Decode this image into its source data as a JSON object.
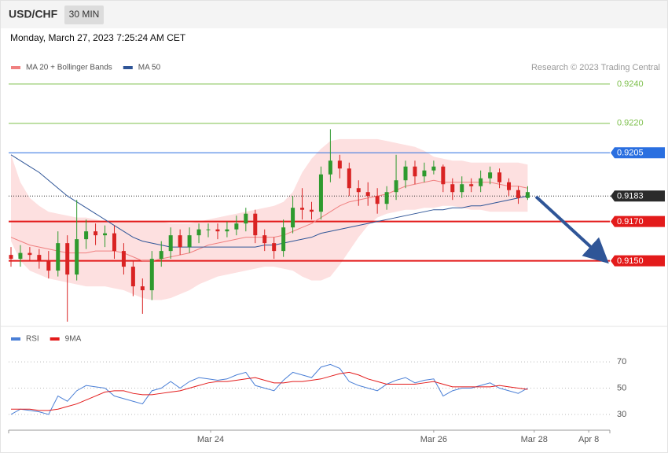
{
  "header": {
    "symbol": "USD/CHF",
    "timeframe": "30 MIN",
    "timestamp": "Monday, March 27, 2023 7:25:24 AM CET",
    "credit": "Research © 2023 Trading Central"
  },
  "chart_data": [
    {
      "type": "candlestick",
      "up_color": "#2e9a2e",
      "down_color": "#d92323",
      "xlim": [
        -0.25,
        63.75
      ],
      "ylim": [
        0.9117,
        0.9268
      ],
      "open": [
        0.9153,
        0.9151,
        0.9154,
        0.9153,
        0.915,
        0.9145,
        0.9159,
        0.9143,
        0.9161,
        0.9165,
        0.9163,
        0.9164,
        0.9155,
        0.9147,
        0.9137,
        0.9135,
        0.9151,
        0.9155,
        0.9163,
        0.9157,
        0.9163,
        0.9166,
        0.9166,
        0.9165,
        0.9166,
        0.9169,
        0.9174,
        0.9163,
        0.9159,
        0.9155,
        0.9167,
        0.9177,
        0.9176,
        0.9175,
        0.9194,
        0.9201,
        0.9197,
        0.9187,
        0.9185,
        0.9183,
        0.9179,
        0.9185,
        0.9191,
        0.9198,
        0.9193,
        0.9196,
        0.9198,
        0.9189,
        0.9185,
        0.9189,
        0.9188,
        0.9192,
        0.9195,
        0.919,
        0.9186,
        0.9182
      ],
      "high": [
        0.9157,
        0.9158,
        0.9157,
        0.9156,
        0.9155,
        0.9165,
        0.9163,
        0.9181,
        0.9171,
        0.9169,
        0.9168,
        0.9168,
        0.9159,
        0.915,
        0.9141,
        0.9155,
        0.916,
        0.9167,
        0.9166,
        0.9167,
        0.9169,
        0.9169,
        0.9169,
        0.917,
        0.9173,
        0.9177,
        0.9176,
        0.9166,
        0.9162,
        0.9171,
        0.9183,
        0.9187,
        0.918,
        0.9198,
        0.9217,
        0.9204,
        0.92,
        0.9191,
        0.919,
        0.9187,
        0.9188,
        0.9204,
        0.9201,
        0.9201,
        0.92,
        0.9201,
        0.9199,
        0.9192,
        0.9193,
        0.9192,
        0.9196,
        0.9198,
        0.9197,
        0.9192,
        0.9188,
        0.9188
      ],
      "low": [
        0.9147,
        0.9147,
        0.915,
        0.9146,
        0.9141,
        0.9142,
        0.9119,
        0.914,
        0.9156,
        0.9158,
        0.9157,
        0.9151,
        0.9143,
        0.9132,
        0.9123,
        0.913,
        0.9147,
        0.9151,
        0.9153,
        0.9154,
        0.9159,
        0.9162,
        0.9161,
        0.9162,
        0.9163,
        0.9165,
        0.9159,
        0.9155,
        0.9151,
        0.9152,
        0.9164,
        0.9171,
        0.9171,
        0.9171,
        0.919,
        0.9192,
        0.9183,
        0.9178,
        0.9178,
        0.9174,
        0.9176,
        0.9181,
        0.9187,
        0.9189,
        0.919,
        0.9194,
        0.9185,
        0.9181,
        0.9182,
        0.9185,
        0.9185,
        0.9189,
        0.9187,
        0.9183,
        0.9179,
        0.9181
      ],
      "close": [
        0.9151,
        0.9154,
        0.9153,
        0.915,
        0.9145,
        0.9159,
        0.9143,
        0.9161,
        0.9165,
        0.9163,
        0.9164,
        0.9155,
        0.9147,
        0.9137,
        0.9135,
        0.9151,
        0.9155,
        0.9163,
        0.9157,
        0.9163,
        0.9166,
        0.9166,
        0.9165,
        0.9166,
        0.9169,
        0.9174,
        0.9163,
        0.9159,
        0.9155,
        0.9167,
        0.9177,
        0.9176,
        0.9175,
        0.9194,
        0.9201,
        0.9197,
        0.9187,
        0.9185,
        0.9183,
        0.9179,
        0.9185,
        0.9191,
        0.9198,
        0.9193,
        0.9196,
        0.9198,
        0.9189,
        0.9185,
        0.9189,
        0.9188,
        0.9192,
        0.9195,
        0.919,
        0.9186,
        0.9182,
        0.9185
      ],
      "series": [
        {
          "name": "MA 20 + Bollinger Bands",
          "color": "#f08080",
          "band_color": "#fde0e0",
          "values": [
            0.9162,
            0.916,
            0.9158,
            0.9157,
            0.9156,
            0.9155,
            0.9154,
            0.9154,
            0.9154,
            0.9155,
            0.9155,
            0.9155,
            0.9154,
            0.9152,
            0.915,
            0.915,
            0.9151,
            0.9152,
            0.9153,
            0.9154,
            0.9156,
            0.9158,
            0.9159,
            0.916,
            0.9161,
            0.9162,
            0.9162,
            0.9162,
            0.9162,
            0.9163,
            0.9165,
            0.9167,
            0.9169,
            0.9172,
            0.9175,
            0.9178,
            0.918,
            0.9181,
            0.9182,
            0.9183,
            0.9184,
            0.9186,
            0.9188,
            0.9189,
            0.919,
            0.9191,
            0.919,
            0.919,
            0.919,
            0.919,
            0.919,
            0.919,
            0.9189,
            0.9188,
            0.9188,
            0.9187
          ],
          "upper": [
            0.9204,
            0.919,
            0.9182,
            0.9178,
            0.9175,
            0.9174,
            0.9173,
            0.9172,
            0.9172,
            0.9171,
            0.917,
            0.917,
            0.917,
            0.917,
            0.917,
            0.917,
            0.917,
            0.9169,
            0.9169,
            0.9169,
            0.917,
            0.9171,
            0.9172,
            0.9173,
            0.9174,
            0.9175,
            0.9176,
            0.9177,
            0.9178,
            0.918,
            0.9185,
            0.9195,
            0.9202,
            0.9207,
            0.9211,
            0.9212,
            0.9212,
            0.9212,
            0.9212,
            0.9212,
            0.9211,
            0.921,
            0.9209,
            0.9208,
            0.9206,
            0.9203,
            0.9202,
            0.9201,
            0.9201,
            0.92,
            0.92,
            0.92,
            0.92,
            0.92,
            0.92,
            0.9199
          ],
          "lower": [
            0.916,
            0.915,
            0.9145,
            0.9143,
            0.9141,
            0.914,
            0.9139,
            0.9138,
            0.9137,
            0.9137,
            0.9137,
            0.9136,
            0.9135,
            0.9133,
            0.9131,
            0.913,
            0.913,
            0.9131,
            0.9133,
            0.9135,
            0.9138,
            0.914,
            0.9142,
            0.9143,
            0.9144,
            0.9145,
            0.9146,
            0.9147,
            0.9147,
            0.9146,
            0.9145,
            0.9142,
            0.914,
            0.914,
            0.9142,
            0.9148,
            0.9155,
            0.9162,
            0.9168,
            0.9172,
            0.9174,
            0.9175,
            0.9176,
            0.9176,
            0.9177,
            0.9177,
            0.9178,
            0.9178,
            0.9177,
            0.9176,
            0.9176,
            0.9175,
            0.9175,
            0.9175,
            0.9175,
            0.9175
          ]
        },
        {
          "name": "MA 50",
          "color": "#2f5597",
          "values": [
            0.9204,
            0.9201,
            0.9198,
            0.9195,
            0.9191,
            0.9187,
            0.9183,
            0.918,
            0.9177,
            0.9174,
            0.9171,
            0.9168,
            0.9165,
            0.9162,
            0.916,
            0.9159,
            0.9158,
            0.9157,
            0.9157,
            0.9157,
            0.9157,
            0.9157,
            0.9157,
            0.9157,
            0.9157,
            0.9157,
            0.9157,
            0.9158,
            0.9158,
            0.9159,
            0.916,
            0.9161,
            0.9162,
            0.9164,
            0.9165,
            0.9166,
            0.9167,
            0.9168,
            0.9169,
            0.917,
            0.9171,
            0.9172,
            0.9173,
            0.9174,
            0.9175,
            0.9176,
            0.9176,
            0.9177,
            0.9177,
            0.9178,
            0.9178,
            0.9179,
            0.918,
            0.9181,
            0.9182,
            0.9183
          ]
        }
      ],
      "levels": [
        {
          "value": 0.924,
          "label": "0.9240",
          "color": "#7cbf4a",
          "style": "solid",
          "boxed": false
        },
        {
          "value": 0.922,
          "label": "0.9220",
          "color": "#7cbf4a",
          "style": "solid",
          "boxed": false
        },
        {
          "value": 0.9205,
          "label": "0.9205",
          "color": "#2a6fe0",
          "style": "solid",
          "boxed": true
        },
        {
          "value": 0.9183,
          "label": "0.9183",
          "color": "#2b2b2b",
          "style": "dotted",
          "boxed": true
        },
        {
          "value": 0.917,
          "label": "0.9170",
          "color": "#e31b1b",
          "style": "thick",
          "boxed": true
        },
        {
          "value": 0.915,
          "label": "0.9150",
          "color": "#e31b1b",
          "style": "thick",
          "boxed": true
        }
      ]
    },
    {
      "type": "line",
      "xlim": [
        -0.25,
        63.75
      ],
      "ylim": [
        18,
        82
      ],
      "yticks": [
        30,
        50,
        70
      ],
      "xticks": [
        {
          "value": 21.25,
          "label": "Mar 24"
        },
        {
          "value": 45,
          "label": "Mar 26"
        },
        {
          "value": 55.7,
          "label": "Mar 28"
        },
        {
          "value": 61.5,
          "label": "Apr 8"
        }
      ],
      "series": [
        {
          "name": "RSI",
          "color": "#4a7fd6",
          "values": [
            30,
            34,
            33,
            32,
            30,
            44,
            40,
            48,
            52,
            51,
            50,
            44,
            42,
            40,
            38,
            48,
            50,
            55,
            50,
            55,
            58,
            57,
            56,
            57,
            60,
            62,
            52,
            50,
            48,
            56,
            62,
            60,
            58,
            66,
            68,
            65,
            55,
            52,
            50,
            48,
            53,
            56,
            58,
            54,
            56,
            57,
            44,
            48,
            50,
            50,
            52,
            54,
            50,
            48,
            46,
            50
          ]
        },
        {
          "name": "9MA",
          "color": "#e31b1b",
          "values": [
            34,
            34,
            34,
            33,
            33,
            34,
            36,
            38,
            41,
            44,
            47,
            48,
            48,
            46,
            45,
            45,
            46,
            47,
            48,
            50,
            52,
            54,
            55,
            55,
            56,
            57,
            58,
            56,
            54,
            54,
            55,
            55,
            56,
            57,
            59,
            61,
            62,
            60,
            57,
            55,
            53,
            53,
            53,
            53,
            54,
            55,
            53,
            51,
            51,
            51,
            51,
            51,
            52,
            51,
            50,
            49
          ]
        }
      ]
    }
  ]
}
